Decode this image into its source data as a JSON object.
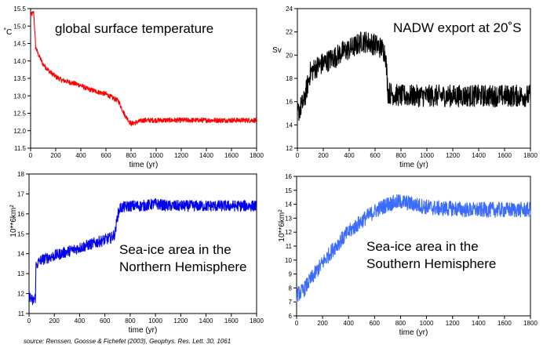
{
  "source_note": "source: Renssen, Goosse & Fichefet (2003), Geophys. Res. Lett. 30, 1061",
  "chart_data": [
    {
      "type": "line",
      "title": "global surface temperature",
      "xlabel": "time (yr)",
      "ylabel": "˚C",
      "xlim": [
        0,
        1800
      ],
      "ylim": [
        11.5,
        15.5
      ],
      "xticks": [
        "0",
        "200",
        "400",
        "600",
        "800",
        "1000",
        "1200",
        "1400",
        "1600",
        "1800"
      ],
      "yticks": [
        "11.5",
        "12.0",
        "12.5",
        "13.0",
        "13.5",
        "14.0",
        "14.5",
        "15.0",
        "15.5"
      ],
      "grid": false,
      "color": "#ff0000",
      "series": [
        {
          "x": [
            0,
            25,
            40,
            60,
            100,
            150,
            200,
            250,
            300,
            350,
            400,
            450,
            500,
            550,
            600,
            650,
            700,
            750,
            800,
            850,
            900,
            1000,
            1100,
            1200,
            1300,
            1400,
            1500,
            1600,
            1700,
            1800
          ],
          "values": [
            15.3,
            15.4,
            14.4,
            14.2,
            13.9,
            13.7,
            13.55,
            13.45,
            13.4,
            13.35,
            13.3,
            13.2,
            13.15,
            13.1,
            13.05,
            12.95,
            12.85,
            12.45,
            12.2,
            12.25,
            12.3,
            12.3,
            12.3,
            12.3,
            12.3,
            12.3,
            12.3,
            12.3,
            12.3,
            12.3
          ],
          "noise": 0.07
        }
      ]
    },
    {
      "type": "line",
      "title": "NADW export at 20˚S",
      "xlabel": "time (yr)",
      "ylabel": "Sv",
      "xlim": [
        0,
        1800
      ],
      "ylim": [
        12,
        24
      ],
      "xticks": [
        "0",
        "200",
        "400",
        "600",
        "800",
        "1000",
        "1200",
        "1400",
        "1600",
        "1800"
      ],
      "yticks": [
        "12",
        "14",
        "16",
        "18",
        "20",
        "22",
        "24"
      ],
      "grid": false,
      "color": "#000000",
      "series": [
        {
          "x": [
            0,
            50,
            100,
            150,
            200,
            250,
            300,
            350,
            400,
            450,
            500,
            550,
            600,
            650,
            680,
            700,
            750,
            800,
            900,
            1000,
            1100,
            1200,
            1300,
            1400,
            1500,
            1600,
            1700,
            1800
          ],
          "values": [
            15,
            16,
            18.5,
            19,
            19.3,
            19.6,
            19.9,
            20.3,
            20.5,
            20.8,
            21.2,
            21.1,
            20.9,
            20.6,
            20.2,
            16.8,
            16.6,
            16.5,
            16.5,
            16.5,
            16.5,
            16.5,
            16.5,
            16.5,
            16.5,
            16.5,
            16.5,
            16.5
          ],
          "noise": 0.95
        }
      ]
    },
    {
      "type": "line",
      "title": "Sea-ice area in the Northern Hemisphere",
      "title_lines": [
        "Sea-ice area in the",
        "Northern Hemisphere"
      ],
      "xlabel": "time (yr)",
      "ylabel": "10**6km²",
      "xlim": [
        0,
        1800
      ],
      "ylim": [
        11,
        18
      ],
      "xticks": [
        "0",
        "200",
        "400",
        "600",
        "800",
        "1000",
        "1200",
        "1400",
        "1600",
        "1800"
      ],
      "yticks": [
        "11",
        "12",
        "13",
        "14",
        "15",
        "16",
        "17",
        "18"
      ],
      "grid": false,
      "color": "#0000ee",
      "series": [
        {
          "x": [
            0,
            30,
            50,
            55,
            80,
            100,
            200,
            300,
            400,
            500,
            600,
            650,
            680,
            700,
            720,
            800,
            900,
            1000,
            1100,
            1200,
            1300,
            1400,
            1500,
            1600,
            1700,
            1800
          ],
          "values": [
            11.9,
            11.6,
            11.8,
            13.4,
            13.6,
            13.7,
            13.9,
            14.1,
            14.3,
            14.5,
            14.7,
            14.8,
            15,
            15.9,
            16.3,
            16.4,
            16.4,
            16.5,
            16.4,
            16.4,
            16.4,
            16.4,
            16.4,
            16.4,
            16.4,
            16.4
          ],
          "noise": 0.28
        }
      ]
    },
    {
      "type": "line",
      "title": "Sea-ice area in the Southern Hemisphere",
      "title_lines": [
        "Sea-ice area in the",
        "Southern Hemisphere"
      ],
      "xlabel": "time (yr)",
      "ylabel": "10**6km²",
      "xlim": [
        0,
        1800
      ],
      "ylim": [
        6,
        16
      ],
      "xticks": [
        "0",
        "200",
        "400",
        "600",
        "800",
        "1000",
        "1200",
        "1400",
        "1600",
        "1800"
      ],
      "yticks": [
        "6",
        "7",
        "8",
        "9",
        "10",
        "11",
        "12",
        "13",
        "14",
        "15",
        "16"
      ],
      "grid": false,
      "color": "#3b6cff",
      "series": [
        {
          "x": [
            0,
            50,
            100,
            200,
            300,
            400,
            500,
            600,
            700,
            800,
            900,
            1000,
            1100,
            1200,
            1300,
            1400,
            1500,
            1600,
            1700,
            1800
          ],
          "values": [
            7.5,
            7.8,
            8.5,
            9.8,
            11,
            12,
            12.8,
            13.5,
            14,
            14.2,
            14,
            13.8,
            13.7,
            13.7,
            13.6,
            13.6,
            13.6,
            13.6,
            13.6,
            13.6
          ],
          "noise": 0.55
        }
      ]
    }
  ]
}
